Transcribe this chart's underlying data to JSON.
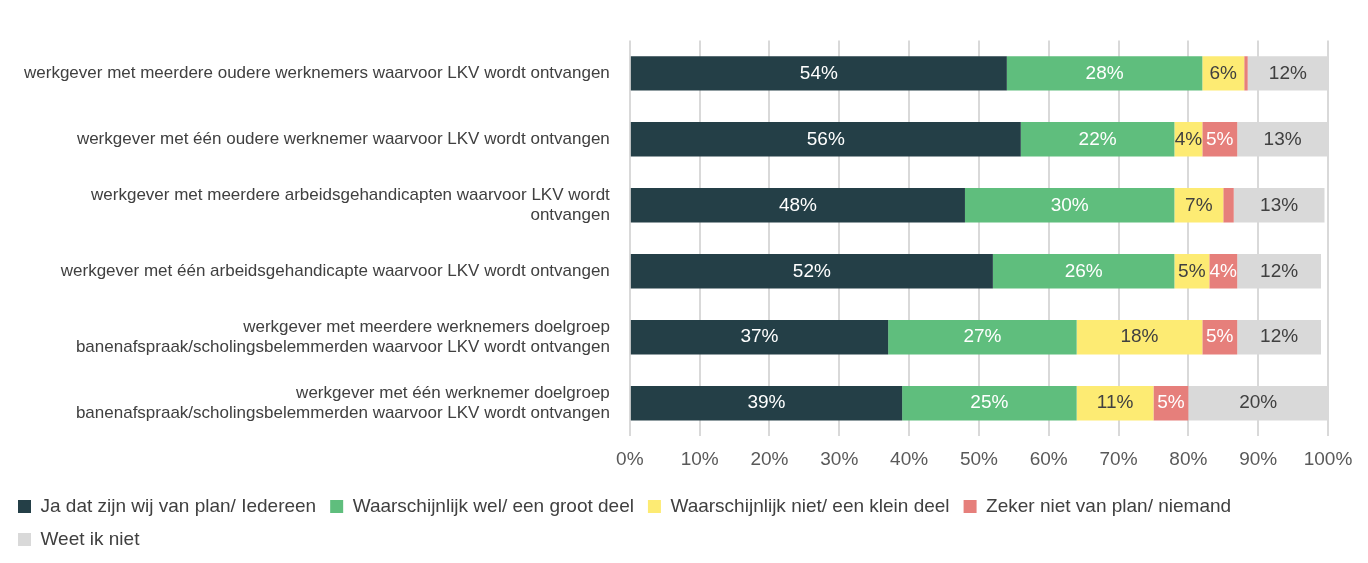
{
  "chart_data": {
    "type": "bar",
    "orientation": "horizontal",
    "stacked": true,
    "categories": [
      "werkgever met meerdere oudere werknemers waarvoor LKV wordt ontvangen",
      "werkgever met één oudere werknemer waarvoor LKV wordt ontvangen",
      "werkgever met meerdere arbeidsgehandicapten waarvoor LKV wordt ontvangen",
      "werkgever met één arbeidsgehandicapte waarvoor LKV wordt ontvangen",
      "werkgever met meerdere werknemers doelgroep banenafspraak/scholingsbelemmerden waarvoor LKV wordt ontvangen",
      "werkgever met één werknemer doelgroep banenafspraak/scholingsbelemmerden waarvoor LKV wordt ontvangen"
    ],
    "series": [
      {
        "name": "Ja dat zijn wij van plan/ Iedereen",
        "color": "#243f47",
        "values": [
          54,
          56,
          48,
          52,
          37,
          39
        ],
        "value_labels": [
          "54%",
          "56%",
          "48%",
          "52%",
          "37%",
          "39%"
        ]
      },
      {
        "name": "Waarschijnlijk wel/ een groot deel",
        "color": "#5fbe7d",
        "values": [
          28,
          22,
          30,
          26,
          27,
          25
        ],
        "value_labels": [
          "28%",
          "22%",
          "30%",
          "26%",
          "27%",
          "25%"
        ]
      },
      {
        "name": "Waarschijnlijk niet/ een klein deel",
        "color": "#fdeb73",
        "values": [
          6,
          4,
          7,
          5,
          18,
          11
        ],
        "value_labels": [
          "6%",
          "4%",
          "7%",
          "5%",
          "18%",
          "11%"
        ]
      },
      {
        "name": "Zeker niet van plan/ niemand",
        "color": "#e67f7b",
        "values": [
          0.5,
          5,
          1.5,
          4,
          5,
          5
        ],
        "value_labels": [
          null,
          "5%",
          null,
          "4%",
          "5%",
          "5%"
        ]
      },
      {
        "name": "Weet ik niet",
        "color": "#d9d9d9",
        "values": [
          11.5,
          13,
          13,
          12,
          12,
          20
        ],
        "value_labels": [
          "12%",
          "13%",
          "13%",
          "12%",
          "12%",
          "20%"
        ]
      }
    ],
    "xlim": [
      0,
      100
    ],
    "xticks": [
      {
        "value": 0,
        "label": "0%"
      },
      {
        "value": 10,
        "label": "10%"
      },
      {
        "value": 20,
        "label": "20%"
      },
      {
        "value": 30,
        "label": "30%"
      },
      {
        "value": 40,
        "label": "40%"
      },
      {
        "value": 50,
        "label": "50%"
      },
      {
        "value": 60,
        "label": "60%"
      },
      {
        "value": 70,
        "label": "70%"
      },
      {
        "value": 80,
        "label": "80%"
      },
      {
        "value": 90,
        "label": "90%"
      },
      {
        "value": 100,
        "label": "100%"
      }
    ],
    "grid": "x",
    "legend": "bottom"
  }
}
